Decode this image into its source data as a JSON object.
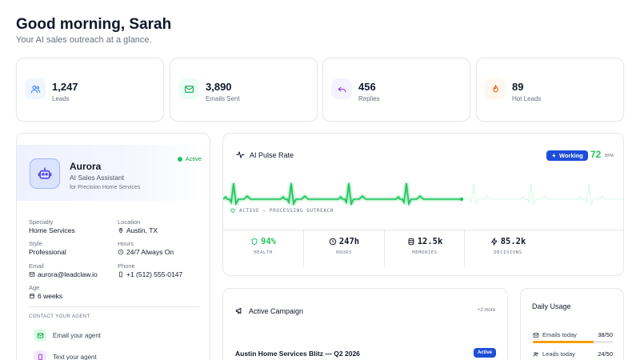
{
  "header": {
    "greeting": "Good morning, Sarah",
    "subtitle": "Your AI sales outreach at a glance."
  },
  "stats": [
    {
      "value": "1,247",
      "label": "Leads",
      "icon": "users-icon",
      "color": "#3b82f6",
      "bg": "#eff6ff"
    },
    {
      "value": "3,890",
      "label": "Emails Sent",
      "icon": "mail-icon",
      "color": "#16a34a",
      "bg": "#ecfdf5"
    },
    {
      "value": "456",
      "label": "Replies",
      "icon": "reply-icon",
      "color": "#9333ea",
      "bg": "#f5f3ff"
    },
    {
      "value": "89",
      "label": "Hot Leads",
      "icon": "flame-icon",
      "color": "#ea580c",
      "bg": "#fff7ed"
    }
  ],
  "agent": {
    "name": "Aurora",
    "role": "AI Sales Assistant",
    "company": "for Precision Home Services",
    "status": "Active",
    "fields": {
      "specialty_label": "Specialty",
      "specialty": "Home Services",
      "location_label": "Location",
      "location": "Austin, TX",
      "style_label": "Style",
      "style": "Professional",
      "hours_label": "Hours",
      "hours": "24/7 Always On",
      "email_label": "Email",
      "email": "aurora@leadclaw.io",
      "phone_label": "Phone",
      "phone": "+1 (512) 555-0147",
      "age_label": "Age",
      "age": "6 weeks"
    },
    "contact_title": "CONTACT YOUR AGENT",
    "contact_email": "Email your agent",
    "contact_text": "Text your agent"
  },
  "pulse": {
    "title": "AI Pulse Rate",
    "badge": "Working",
    "bpm": "72",
    "bpm_unit": "BPM",
    "status": "ACTIVE — PROCESSING OUTREACH",
    "accent": "#22c55e",
    "metrics": [
      {
        "value": "94%",
        "label": "HEALTH",
        "icon": "shield-icon"
      },
      {
        "value": "247h",
        "label": "HOURS",
        "icon": "clock-icon"
      },
      {
        "value": "12.5k",
        "label": "MEMORIES",
        "icon": "database-icon"
      },
      {
        "value": "85.2k",
        "label": "DECISIONS",
        "icon": "zap-icon"
      }
    ]
  },
  "campaign": {
    "title": "Active Campaign",
    "more": "+2 more",
    "name": "Austin Home Services Blitz — Q2 2026",
    "badge": "Active"
  },
  "usage": {
    "title": "Daily Usage",
    "rows": [
      {
        "label": "Emails today",
        "count": "38/50",
        "fraction": 0.76,
        "color": "#f59e0b"
      },
      {
        "label": "Leads today",
        "count": "24/50",
        "fraction": 0.48,
        "color": "#3b82f6"
      }
    ]
  }
}
